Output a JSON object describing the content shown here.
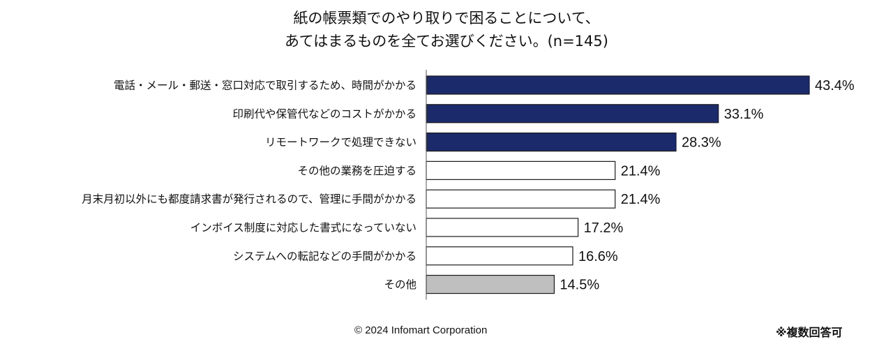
{
  "chart_data": {
    "type": "bar",
    "orientation": "horizontal",
    "title": [
      "紙の帳票類でのやり取りで困ることについて、",
      "あてはまるものを全てお選びください。(n=145)"
    ],
    "categories": [
      "電話・メール・郵送・窓口対応で取引するため、時間がかかる",
      "印刷代や保管代などのコストがかかる",
      "リモートワークで処理できない",
      "その他の業務を圧迫する",
      "月末月初以外にも都度請求書が発行されるので、管理に手間がかかる",
      "インボイス制度に対応した書式になっていない",
      "システムへの転記などの手間がかかる",
      "その他"
    ],
    "values": [
      43.4,
      33.1,
      28.3,
      21.4,
      21.4,
      17.2,
      16.6,
      14.5
    ],
    "value_labels": [
      "43.4%",
      "33.1%",
      "28.3%",
      "21.4%",
      "21.4%",
      "17.2%",
      "16.6%",
      "14.5%"
    ],
    "bar_styles": [
      "highlight",
      "highlight",
      "highlight",
      "plain",
      "plain",
      "plain",
      "plain",
      "other"
    ],
    "xlim": [
      0,
      50
    ]
  },
  "colors": {
    "highlight": "#1b2a6b",
    "plain": "#ffffff",
    "other": "#bfbfbf",
    "border": "#1a1a1a"
  },
  "footer": {
    "copyright": "© 2024 Infomart Corporation",
    "note": "※複数回答可"
  }
}
